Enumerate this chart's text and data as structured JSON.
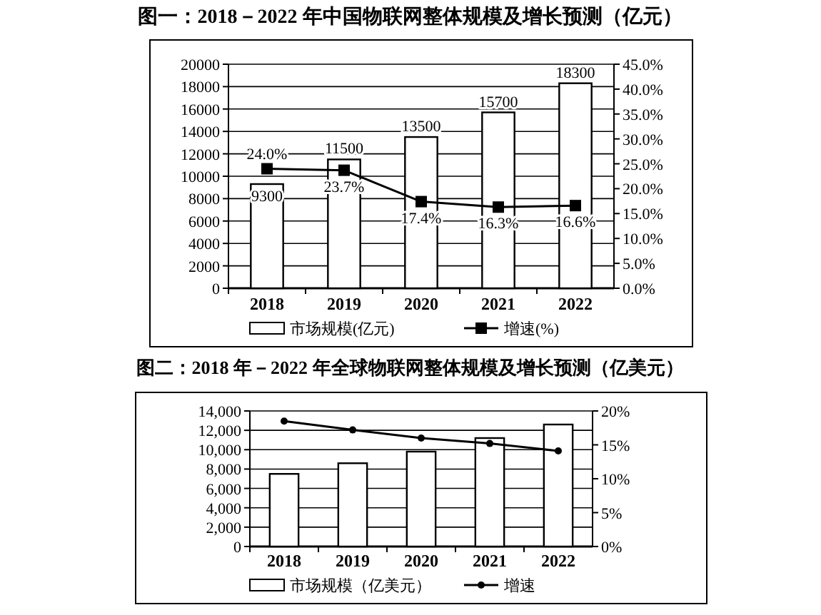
{
  "chart_data": [
    {
      "type": "bar",
      "title": "图一：2018－2022 年中国物联网整体规模及增长预测（亿元）",
      "categories": [
        "2018",
        "2019",
        "2020",
        "2021",
        "2022"
      ],
      "series": [
        {
          "name": "市场规模(亿元)",
          "color": "#ffffff",
          "values": [
            9300,
            11500,
            13500,
            15700,
            18300
          ]
        },
        {
          "name": "增速(%)",
          "type": "line",
          "axis": "y2",
          "color": "#000000",
          "marker": "square",
          "values": [
            24.0,
            23.7,
            17.4,
            16.3,
            16.6
          ],
          "value_labels": [
            "24.0%",
            "23.7%",
            "17.4%",
            "16.3%",
            "16.6%"
          ]
        }
      ],
      "data_labels": true,
      "ylim": [
        0,
        20000
      ],
      "yticks": [
        0,
        2000,
        4000,
        6000,
        8000,
        10000,
        12000,
        14000,
        16000,
        18000,
        20000
      ],
      "y2lim": [
        0,
        45
      ],
      "y2ticks": [
        {
          "value": 0,
          "label": "0.0%"
        },
        {
          "value": 5,
          "label": "5.0%"
        },
        {
          "value": 10,
          "label": "10.0%"
        },
        {
          "value": 15,
          "label": "15.0%"
        },
        {
          "value": 20,
          "label": "20.0%"
        },
        {
          "value": 25,
          "label": "25.0%"
        },
        {
          "value": 30,
          "label": "30.0%"
        },
        {
          "value": 35,
          "label": "35.0%"
        },
        {
          "value": 40,
          "label": "40.0%"
        },
        {
          "value": 45,
          "label": "45.0%"
        }
      ],
      "grid": "y",
      "legend": "bottom"
    },
    {
      "type": "bar",
      "title": "图二：2018 年－2022 年全球物联网整体规模及增长预测（亿美元）",
      "categories": [
        "2018",
        "2019",
        "2020",
        "2021",
        "2022"
      ],
      "series": [
        {
          "name": "市场规模（亿美元）",
          "color": "#ffffff",
          "values": [
            7500,
            8600,
            9800,
            11200,
            12600
          ]
        },
        {
          "name": "增速",
          "type": "line",
          "axis": "y2",
          "color": "#000000",
          "marker": "circle",
          "values": [
            18.5,
            17.2,
            16.0,
            15.2,
            14.1
          ]
        }
      ],
      "ylim": [
        0,
        14000
      ],
      "yticks": [
        0,
        {
          "value": 2000,
          "label": "2,000"
        },
        {
          "value": 4000,
          "label": "4,000"
        },
        {
          "value": 6000,
          "label": "6,000"
        },
        {
          "value": 8000,
          "label": "8,000"
        },
        {
          "value": 10000,
          "label": "10,000"
        },
        {
          "value": 12000,
          "label": "12,000"
        },
        {
          "value": 14000,
          "label": "14,000"
        }
      ],
      "y2lim": [
        0,
        20
      ],
      "y2ticks": [
        {
          "value": 0,
          "label": "0%"
        },
        {
          "value": 5,
          "label": "5%"
        },
        {
          "value": 10,
          "label": "10%"
        },
        {
          "value": 15,
          "label": "15%"
        },
        {
          "value": 20,
          "label": "20%"
        }
      ],
      "grid": "y",
      "legend": "bottom"
    }
  ]
}
